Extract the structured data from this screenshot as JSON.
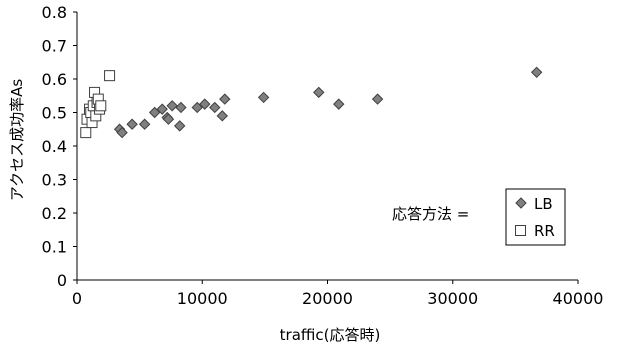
{
  "chart_data": {
    "type": "scatter",
    "xlabel": "traffic(応答時)",
    "ylabel": "アクセス成功率As",
    "xlim": [
      0,
      40000
    ],
    "ylim": [
      0,
      0.8
    ],
    "x_ticks": [
      "0",
      "10000",
      "20000",
      "30000",
      "40000"
    ],
    "y_ticks": [
      "0",
      "0.1",
      "0.2",
      "0.3",
      "0.4",
      "0.5",
      "0.6",
      "0.7",
      "0.8"
    ],
    "grid": false,
    "legend": {
      "title": "応答方法 =",
      "placement": "bottom-right"
    },
    "series": [
      {
        "name": "LB",
        "marker": "diamond",
        "color": "#808080",
        "points": [
          [
            3400,
            0.45
          ],
          [
            3600,
            0.44
          ],
          [
            4400,
            0.465
          ],
          [
            5400,
            0.465
          ],
          [
            6200,
            0.5
          ],
          [
            6800,
            0.51
          ],
          [
            7200,
            0.485
          ],
          [
            7300,
            0.48
          ],
          [
            7600,
            0.52
          ],
          [
            8200,
            0.46
          ],
          [
            8300,
            0.515
          ],
          [
            9600,
            0.515
          ],
          [
            10200,
            0.525
          ],
          [
            11000,
            0.515
          ],
          [
            11600,
            0.49
          ],
          [
            11800,
            0.54
          ],
          [
            14900,
            0.545
          ],
          [
            19300,
            0.56
          ],
          [
            20900,
            0.525
          ],
          [
            24000,
            0.54
          ],
          [
            36700,
            0.62
          ]
        ]
      },
      {
        "name": "RR",
        "marker": "square",
        "color": "#ffffff",
        "points": [
          [
            700,
            0.44
          ],
          [
            800,
            0.48
          ],
          [
            1000,
            0.51
          ],
          [
            1100,
            0.5
          ],
          [
            1200,
            0.47
          ],
          [
            1300,
            0.52
          ],
          [
            1400,
            0.56
          ],
          [
            1500,
            0.49
          ],
          [
            1600,
            0.53
          ],
          [
            1700,
            0.54
          ],
          [
            1800,
            0.51
          ],
          [
            1900,
            0.52
          ],
          [
            2600,
            0.61
          ]
        ]
      }
    ]
  }
}
